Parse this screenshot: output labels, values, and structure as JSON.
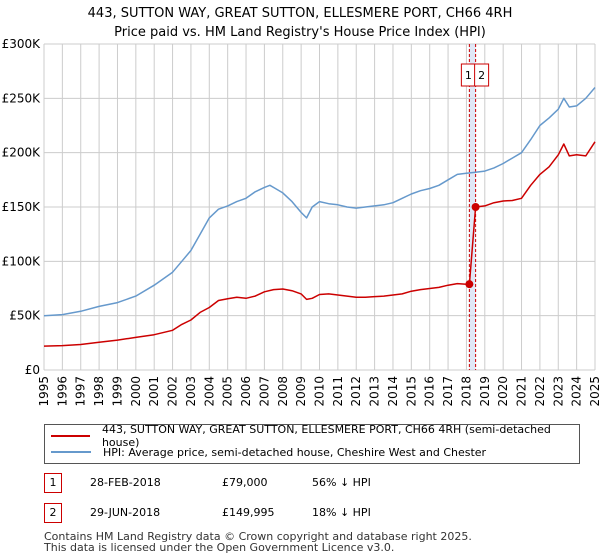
{
  "title_line1": "443, SUTTON WAY, GREAT SUTTON, ELLESMERE PORT, CH66 4RH",
  "title_line2": "Price paid vs. HM Land Registry's House Price Index (HPI)",
  "legend": {
    "property": "443, SUTTON WAY, GREAT SUTTON, ELLESMERE PORT, CH66 4RH (semi-detached house)",
    "hpi": "HPI: Average price, semi-detached house, Cheshire West and Chester"
  },
  "transactions": [
    {
      "id": "1",
      "date": "28-FEB-2018",
      "price": "£79,000",
      "hpi_diff": "56% ↓ HPI"
    },
    {
      "id": "2",
      "date": "29-JUN-2018",
      "price": "£149,995",
      "hpi_diff": "18% ↓ HPI"
    }
  ],
  "footer": {
    "line1": "Contains HM Land Registry data © Crown copyright and database right 2025.",
    "line2": "This data is licensed under the Open Government Licence v3.0."
  },
  "colors": {
    "property": "#cc0000",
    "hpi": "#6699cc",
    "highlight": "#ccd9f2",
    "vline": "#cc0000"
  },
  "chart_data": {
    "type": "line",
    "title": "443, SUTTON WAY, GREAT SUTTON, ELLESMERE PORT, CH66 4RH — Price paid vs. HM Land Registry's House Price Index (HPI)",
    "xlabel": "",
    "ylabel": "",
    "xlim": [
      1995,
      2025
    ],
    "ylim": [
      0,
      300000
    ],
    "y_ticks": [
      0,
      50000,
      100000,
      150000,
      200000,
      250000,
      300000
    ],
    "y_tick_labels": [
      "£0",
      "£50K",
      "£100K",
      "£150K",
      "£200K",
      "£250K",
      "£300K"
    ],
    "x_ticks": [
      "1995",
      "1996",
      "1997",
      "1998",
      "1999",
      "2000",
      "2001",
      "2002",
      "2003",
      "2004",
      "2005",
      "2006",
      "2007",
      "2008",
      "2009",
      "2010",
      "2011",
      "2012",
      "2013",
      "2014",
      "2015",
      "2016",
      "2017",
      "2018",
      "2019",
      "2020",
      "2021",
      "2022",
      "2023",
      "2024",
      "2025"
    ],
    "grid": true,
    "highlight_span": [
      2018.16,
      2018.5
    ],
    "markers": [
      {
        "label": "1",
        "x": 2018.16,
        "y": 79000
      },
      {
        "label": "2",
        "x": 2018.5,
        "y": 149995
      }
    ],
    "series": [
      {
        "name": "443, SUTTON WAY, GREAT SUTTON, ELLESMERE PORT, CH66 4RH (semi-detached house)",
        "color": "#cc0000",
        "x": [
          1995.0,
          1996.0,
          1997.0,
          1998.0,
          1999.0,
          2000.0,
          2001.0,
          2002.0,
          2002.5,
          2003.0,
          2003.5,
          2004.0,
          2004.5,
          2005.0,
          2005.5,
          2006.0,
          2006.5,
          2007.0,
          2007.5,
          2008.0,
          2008.5,
          2009.0,
          2009.3,
          2009.6,
          2010.0,
          2010.5,
          2011.0,
          2011.5,
          2012.0,
          2012.5,
          2013.0,
          2013.5,
          2014.0,
          2014.5,
          2015.0,
          2015.5,
          2016.0,
          2016.5,
          2017.0,
          2017.5,
          2018.0,
          2018.16,
          2018.5,
          2019.0,
          2019.5,
          2020.0,
          2020.5,
          2021.0,
          2021.5,
          2022.0,
          2022.5,
          2023.0,
          2023.3,
          2023.6,
          2024.0,
          2024.5,
          2025.0
        ],
        "y": [
          22000,
          22500,
          23500,
          25500,
          27500,
          30000,
          32500,
          36500,
          42000,
          46000,
          53000,
          57500,
          64000,
          65500,
          67000,
          66000,
          68000,
          72000,
          74000,
          74500,
          73000,
          70000,
          65000,
          66000,
          69500,
          70000,
          69000,
          68000,
          67000,
          67000,
          67500,
          68000,
          69000,
          70000,
          72500,
          74000,
          75000,
          76000,
          78000,
          79500,
          79000,
          79000,
          149995,
          151000,
          154000,
          155500,
          156000,
          158000,
          170000,
          180000,
          187000,
          198000,
          208000,
          197000,
          198000,
          197000,
          210000
        ]
      },
      {
        "name": "HPI: Average price, semi-detached house, Cheshire West and Chester",
        "color": "#6699cc",
        "x": [
          1995.0,
          1996.0,
          1997.0,
          1998.0,
          1999.0,
          2000.0,
          2001.0,
          2002.0,
          2002.5,
          2003.0,
          2003.5,
          2004.0,
          2004.5,
          2005.0,
          2005.5,
          2006.0,
          2006.5,
          2007.0,
          2007.3,
          2007.6,
          2008.0,
          2008.5,
          2009.0,
          2009.3,
          2009.6,
          2010.0,
          2010.5,
          2011.0,
          2011.5,
          2012.0,
          2012.5,
          2013.0,
          2013.5,
          2014.0,
          2014.5,
          2015.0,
          2015.5,
          2016.0,
          2016.5,
          2017.0,
          2017.5,
          2018.0,
          2018.5,
          2019.0,
          2019.5,
          2020.0,
          2020.5,
          2021.0,
          2021.5,
          2022.0,
          2022.5,
          2023.0,
          2023.3,
          2023.6,
          2024.0,
          2024.5,
          2025.0
        ],
        "y": [
          50000,
          51000,
          54000,
          58500,
          62000,
          68000,
          78000,
          90000,
          100000,
          110000,
          125000,
          140000,
          148000,
          151000,
          155000,
          158000,
          164000,
          168000,
          170000,
          167000,
          163000,
          155000,
          145000,
          140000,
          150000,
          155000,
          153000,
          152000,
          150000,
          149000,
          150000,
          151000,
          152000,
          154000,
          158000,
          162000,
          165000,
          167000,
          170000,
          175000,
          180000,
          181000,
          182000,
          183000,
          186000,
          190000,
          195000,
          200000,
          212000,
          225000,
          232000,
          240000,
          250000,
          242000,
          243000,
          250000,
          260000
        ]
      }
    ]
  }
}
